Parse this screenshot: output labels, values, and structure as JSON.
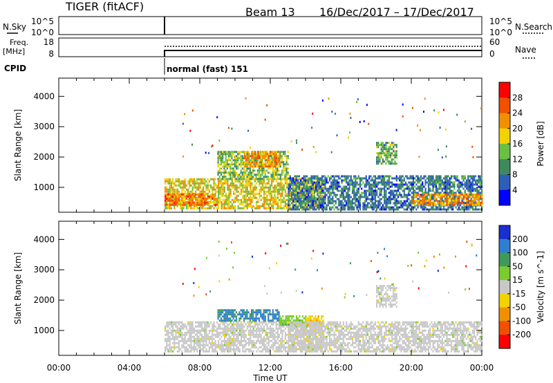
{
  "header": {
    "title": "TIGER (fitACF)",
    "beam": "Beam 13",
    "dates": "16/Dec/2017 – 17/Dec/2017"
  },
  "top_panels": {
    "nsky_label": "N.Sky",
    "nsky_ticks": [
      "10^5",
      "10^0"
    ],
    "nsearch_label": "N.Search",
    "nsearch_ticks": [
      "10^5",
      "10^0"
    ],
    "freq_label": "Freq.",
    "freq_unit": "[MHz]",
    "freq_ticks": [
      "18",
      "8"
    ],
    "nave_label": "Nave",
    "nave_ticks": [
      "60",
      "0"
    ],
    "cpid_label": "CPID",
    "cpid_value": "normal (fast) 151",
    "data_start_hour": 6
  },
  "colors": {
    "power": [
      "#0000ff",
      "#2e5fb8",
      "#3f8a5c",
      "#69c043",
      "#f2d200",
      "#f09000",
      "#f05000",
      "#ff0000"
    ],
    "velocity": [
      "#1a2fd0",
      "#2e7fd0",
      "#3f9a5a",
      "#7acc2e",
      "#c8c8c8",
      "#f2d200",
      "#f09000",
      "#f05000",
      "#ff0000"
    ]
  },
  "chart_data": [
    {
      "type": "heatmap",
      "title": "Power",
      "ylabel": "Slant Range [km]",
      "xlabel": "Time UT",
      "x_ticks": [
        "00:00",
        "04:00",
        "08:00",
        "12:00",
        "16:00",
        "20:00",
        "00:00"
      ],
      "x_range_hours": [
        0,
        24
      ],
      "y_ticks": [
        1000,
        2000,
        3000,
        4000
      ],
      "ylim": [
        180,
        4600
      ],
      "colorbar": {
        "label": "Power [dB]",
        "ticks": [
          4,
          8,
          12,
          16,
          20,
          24,
          28
        ],
        "range": [
          0,
          32
        ]
      },
      "regions": [
        {
          "t": [
            6,
            15
          ],
          "r": [
            300,
            1300
          ],
          "value": 18
        },
        {
          "t": [
            6,
            9
          ],
          "r": [
            400,
            800
          ],
          "value": 24
        },
        {
          "t": [
            9,
            13
          ],
          "r": [
            1300,
            2200
          ],
          "value": 14
        },
        {
          "t": [
            10.5,
            12.5
          ],
          "r": [
            1700,
            2200
          ],
          "value": 22
        },
        {
          "t": [
            13,
            24
          ],
          "r": [
            300,
            1400
          ],
          "value": 8
        },
        {
          "t": [
            20,
            24
          ],
          "r": [
            400,
            800
          ],
          "value": 22
        },
        {
          "t": [
            18,
            19.2
          ],
          "r": [
            1800,
            2500
          ],
          "value": 12
        }
      ]
    },
    {
      "type": "heatmap",
      "title": "Velocity",
      "ylabel": "Slant Range [km]",
      "xlabel": "Time UT",
      "x_ticks": [
        "00:00",
        "04:00",
        "08:00",
        "12:00",
        "16:00",
        "20:00",
        "00:00"
      ],
      "x_range_hours": [
        0,
        24
      ],
      "y_ticks": [
        1000,
        2000,
        3000,
        4000
      ],
      "ylim": [
        180,
        4600
      ],
      "colorbar": {
        "label": "Velocity [m s^-1]",
        "ticks": [
          200,
          100,
          50,
          15,
          -15,
          -50,
          -100,
          -200
        ],
        "range": [
          -250,
          250
        ]
      },
      "regions": [
        {
          "t": [
            6,
            15
          ],
          "r": [
            300,
            1300
          ],
          "value": 0
        },
        {
          "t": [
            9,
            12.5
          ],
          "r": [
            1300,
            1700
          ],
          "value": 150
        },
        {
          "t": [
            12.5,
            14
          ],
          "r": [
            1200,
            1500
          ],
          "value": 60
        },
        {
          "t": [
            14,
            15
          ],
          "r": [
            1200,
            1500
          ],
          "value": -60
        },
        {
          "t": [
            13,
            24
          ],
          "r": [
            300,
            1300
          ],
          "value": 0
        },
        {
          "t": [
            18,
            19.2
          ],
          "r": [
            1800,
            2500
          ],
          "value": 0
        }
      ]
    }
  ]
}
